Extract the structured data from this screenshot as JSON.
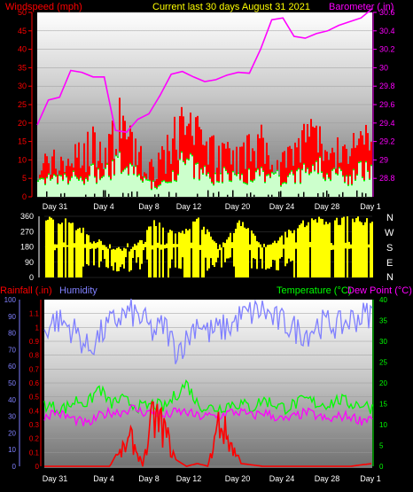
{
  "header": {
    "left_label": "Windspeed (mph)",
    "title": "Current last 30 days August 31 2021",
    "right_label": "Barometer (.in)"
  },
  "direction_labels": [
    "N",
    "W",
    "S",
    "E",
    "N"
  ],
  "bottom_header": {
    "rain_label": "Rainfall (.in)",
    "humidity_label": "Humidity",
    "temp_label": "Temperature (°C)",
    "dew_label": "Dew Point (°C)"
  },
  "colors": {
    "wind_avg": "#00ff00",
    "wind_gust": "#ff0000",
    "wind_fill_light": "#ccffcc",
    "barometer": "#ff00ff",
    "direction": "#ffff00",
    "rain": "#ff0000",
    "humidity": "#8080ff",
    "temperature": "#00ff00",
    "dew_point": "#ff00ff",
    "title": "#ffff00",
    "left_axis": "#ff0000",
    "right_axis": "#ff00ff"
  },
  "chart_data": [
    {
      "type": "area",
      "x_tick_labels": [
        "Day 31",
        "Day 4",
        "Day 8",
        "Day 12",
        "Day 20",
        "Day 24",
        "Day 28",
        "Day 1"
      ],
      "ylim_left": [
        0,
        50
      ],
      "yticks_left": [
        "0",
        "5",
        "10",
        "15",
        "20",
        "25",
        "30",
        "35",
        "40",
        "45",
        "50"
      ],
      "ylim_right": [
        28.6,
        30.6
      ],
      "yticks_right": [
        "28.8",
        "29",
        "29.2",
        "29.4",
        "29.6",
        "29.8",
        "30",
        "30.2",
        "30.4",
        "30.6"
      ],
      "series": [
        {
          "name": "Windspeed (mph)",
          "axis": "left",
          "x": [
            0,
            1,
            2,
            3,
            4,
            5,
            6,
            7,
            8,
            9,
            10,
            11,
            12,
            13,
            14,
            15,
            16,
            17,
            18,
            19,
            20,
            21,
            22,
            23,
            24,
            25,
            26,
            27,
            28,
            29,
            30
          ],
          "values": [
            12,
            14,
            13,
            16,
            15,
            21,
            17,
            30,
            20,
            18,
            10,
            13,
            20,
            28,
            24,
            19,
            17,
            18,
            15,
            18,
            20,
            18,
            14,
            16,
            23,
            27,
            19,
            17,
            16,
            22,
            24
          ]
        },
        {
          "name": "Barometer (.in)",
          "axis": "right",
          "x": [
            0,
            1,
            2,
            3,
            4,
            5,
            6,
            7,
            8,
            9,
            10,
            11,
            12,
            13,
            14,
            15,
            16,
            17,
            18,
            19,
            20,
            21,
            22,
            23,
            24,
            25,
            26,
            27,
            28,
            29,
            30
          ],
          "values": [
            29.38,
            29.65,
            29.68,
            29.97,
            29.95,
            29.9,
            29.9,
            29.32,
            29.3,
            29.44,
            29.5,
            29.7,
            29.93,
            29.96,
            29.9,
            29.85,
            29.87,
            29.92,
            29.95,
            29.94,
            30.2,
            30.52,
            30.54,
            30.34,
            30.32,
            30.37,
            30.4,
            30.46,
            30.5,
            30.54,
            30.64
          ]
        }
      ]
    },
    {
      "type": "area",
      "x_tick_labels": [
        "Day 31",
        "Day 4",
        "Day 8",
        "Day 12",
        "Day 20",
        "Day 24",
        "Day 28",
        "Day 1"
      ],
      "ylim": [
        0,
        360
      ],
      "yticks": [
        "0",
        "90",
        "180",
        "270",
        "360"
      ],
      "series": [
        {
          "name": "Wind direction",
          "x": [
            0,
            2,
            4,
            6,
            8,
            10,
            12,
            14,
            16,
            18,
            20,
            22,
            24,
            26,
            28,
            30
          ],
          "values": [
            360,
            360,
            270,
            180,
            180,
            360,
            270,
            360,
            180,
            360,
            180,
            270,
            360,
            360,
            360,
            360
          ]
        }
      ]
    },
    {
      "type": "line",
      "x_tick_labels": [
        "Day 31",
        "Day 4",
        "Day 8",
        "Day 12",
        "Day 20",
        "Day 24",
        "Day 28",
        "Day 1"
      ],
      "ylim_left": [
        0,
        1.2
      ],
      "yticks_left": [
        "0",
        "0.1",
        "0.2",
        "0.3",
        "0.4",
        "0.5",
        "0.6",
        "0.7",
        "0.8",
        "0.9",
        "1",
        "1.1"
      ],
      "ylim_humidity": [
        0,
        100
      ],
      "yticks_humidity": [
        "0",
        "10",
        "20",
        "30",
        "40",
        "50",
        "60",
        "70",
        "80",
        "90",
        "100"
      ],
      "ylim_right": [
        0,
        40
      ],
      "yticks_right": [
        "0",
        "5",
        "10",
        "15",
        "20",
        "25",
        "30",
        "35",
        "40"
      ],
      "series": [
        {
          "name": "Humidity",
          "axis": "humidity",
          "x": [
            0,
            1,
            2,
            3,
            4,
            5,
            6,
            7,
            8,
            9,
            10,
            11,
            12,
            13,
            14,
            15,
            16,
            17,
            18,
            19,
            20,
            21,
            22,
            23,
            24,
            25,
            26,
            27,
            28,
            29,
            30
          ],
          "values": [
            82,
            88,
            85,
            80,
            70,
            78,
            85,
            90,
            92,
            88,
            80,
            85,
            70,
            75,
            88,
            80,
            82,
            84,
            90,
            92,
            94,
            88,
            86,
            82,
            80,
            85,
            86,
            84,
            88,
            90,
            92
          ]
        },
        {
          "name": "Temperature (°C)",
          "axis": "right",
          "x": [
            0,
            1,
            2,
            3,
            4,
            5,
            6,
            7,
            8,
            9,
            10,
            11,
            12,
            13,
            14,
            15,
            16,
            17,
            18,
            19,
            20,
            21,
            22,
            23,
            24,
            25,
            26,
            27,
            28,
            29,
            30
          ],
          "values": [
            15,
            14,
            14,
            16,
            15,
            19,
            15,
            16,
            15,
            14,
            15,
            14,
            17,
            20,
            15,
            14,
            14,
            15,
            15,
            14,
            16,
            15,
            14,
            15,
            16,
            15,
            15,
            16,
            15,
            15,
            14
          ]
        },
        {
          "name": "Dew Point (°C)",
          "axis": "right",
          "x": [
            0,
            1,
            2,
            3,
            4,
            5,
            6,
            7,
            8,
            9,
            10,
            11,
            12,
            13,
            14,
            15,
            16,
            17,
            18,
            19,
            20,
            21,
            22,
            23,
            24,
            25,
            26,
            27,
            28,
            29,
            30
          ],
          "values": [
            12,
            13,
            12,
            11,
            10,
            12,
            13,
            13,
            14,
            13,
            13,
            12,
            13,
            13,
            12,
            12,
            12,
            13,
            13,
            12,
            13,
            12,
            11,
            12,
            13,
            12,
            11,
            12,
            12,
            11,
            12
          ]
        },
        {
          "name": "Rainfall (.in)",
          "axis": "left",
          "x": [
            0,
            2,
            4,
            6,
            8,
            9,
            10,
            11,
            12,
            13,
            14,
            15,
            16,
            18,
            20,
            22,
            24,
            26,
            28,
            30
          ],
          "values": [
            0,
            0,
            0,
            0,
            0.3,
            0,
            0.55,
            0.4,
            0.05,
            0,
            0.02,
            0,
            0.5,
            0.02,
            0,
            0,
            0,
            0,
            0,
            0.02
          ]
        }
      ]
    }
  ]
}
